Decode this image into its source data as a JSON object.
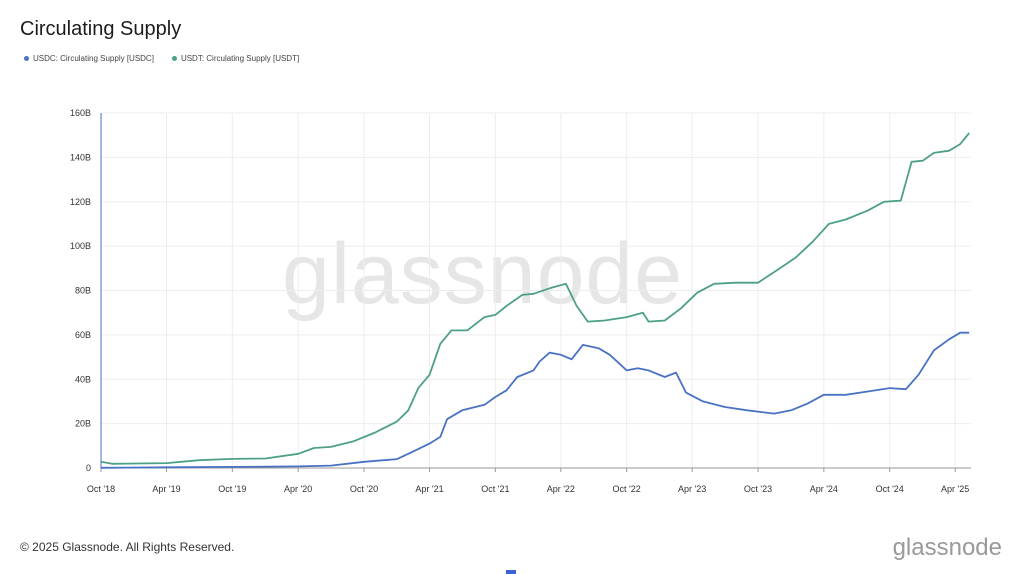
{
  "page": {
    "watermark": "glassnode",
    "copyright": "© 2025 Glassnode. All Rights Reserved.",
    "brand": "glassnode"
  },
  "colors": {
    "usdc": "#4a72c4",
    "usdt": "#4ea084",
    "grid": "#ededed",
    "axis": "#999999"
  },
  "chart_data": {
    "type": "line",
    "title": "Circulating Supply",
    "xlabel": "",
    "ylabel": "",
    "ylim": [
      0,
      160
    ],
    "y_ticks": [
      0,
      20,
      40,
      60,
      80,
      100,
      120,
      140,
      160
    ],
    "y_tick_labels": [
      "0",
      "20B",
      "40B",
      "60B",
      "80B",
      "100B",
      "120B",
      "140B",
      "160B"
    ],
    "xlim": [
      "2018-10-01",
      "2025-05-15"
    ],
    "x_ticks": [
      "2018-10-01",
      "2019-04-01",
      "2019-10-01",
      "2020-04-01",
      "2020-10-01",
      "2021-04-01",
      "2021-10-01",
      "2022-04-01",
      "2022-10-01",
      "2023-04-01",
      "2023-10-01",
      "2024-04-01",
      "2024-10-01",
      "2025-04-01"
    ],
    "x_tick_labels": [
      "Oct '18",
      "Apr '19",
      "Oct '19",
      "Apr '20",
      "Oct '20",
      "Apr '21",
      "Oct '21",
      "Apr '22",
      "Oct '22",
      "Apr '23",
      "Oct '23",
      "Apr '24",
      "Oct '24",
      "Apr '25"
    ],
    "grid": true,
    "legend_position": "top-left",
    "series": [
      {
        "name": "USDC: Circulating Supply [USDC]",
        "key": "usdc",
        "points": [
          [
            "2018-10-01",
            0.1
          ],
          [
            "2019-04-01",
            0.3
          ],
          [
            "2019-10-01",
            0.5
          ],
          [
            "2020-04-01",
            0.7
          ],
          [
            "2020-07-01",
            1.1
          ],
          [
            "2020-10-01",
            2.8
          ],
          [
            "2021-01-01",
            4.0
          ],
          [
            "2021-02-15",
            7.5
          ],
          [
            "2021-04-01",
            11.0
          ],
          [
            "2021-05-01",
            14.0
          ],
          [
            "2021-05-20",
            22.0
          ],
          [
            "2021-07-01",
            26.0
          ],
          [
            "2021-09-01",
            28.5
          ],
          [
            "2021-10-01",
            32.0
          ],
          [
            "2021-11-01",
            35.0
          ],
          [
            "2021-12-01",
            41.0
          ],
          [
            "2022-01-15",
            44.0
          ],
          [
            "2022-02-01",
            48.0
          ],
          [
            "2022-03-01",
            52.0
          ],
          [
            "2022-04-01",
            51.0
          ],
          [
            "2022-05-01",
            49.0
          ],
          [
            "2022-06-01",
            55.5
          ],
          [
            "2022-07-15",
            54.0
          ],
          [
            "2022-08-15",
            51.0
          ],
          [
            "2022-10-01",
            44.0
          ],
          [
            "2022-11-01",
            45.0
          ],
          [
            "2022-12-01",
            44.0
          ],
          [
            "2023-01-15",
            41.0
          ],
          [
            "2023-02-15",
            43.0
          ],
          [
            "2023-03-15",
            34.0
          ],
          [
            "2023-05-01",
            30.0
          ],
          [
            "2023-07-01",
            27.5
          ],
          [
            "2023-09-01",
            26.0
          ],
          [
            "2023-11-15",
            24.5
          ],
          [
            "2024-01-01",
            26.0
          ],
          [
            "2024-02-15",
            29.0
          ],
          [
            "2024-04-01",
            33.0
          ],
          [
            "2024-06-01",
            33.0
          ],
          [
            "2024-08-01",
            34.5
          ],
          [
            "2024-10-01",
            36.0
          ],
          [
            "2024-11-15",
            35.5
          ],
          [
            "2024-12-20",
            42.0
          ],
          [
            "2025-02-01",
            53.0
          ],
          [
            "2025-03-15",
            58.0
          ],
          [
            "2025-04-15",
            61.0
          ],
          [
            "2025-05-10",
            61.0
          ]
        ]
      },
      {
        "name": "USDT: Circulating Supply [USDT]",
        "key": "usdt",
        "points": [
          [
            "2018-10-01",
            2.8
          ],
          [
            "2018-11-01",
            1.9
          ],
          [
            "2019-04-01",
            2.2
          ],
          [
            "2019-07-01",
            3.5
          ],
          [
            "2019-10-01",
            4.1
          ],
          [
            "2020-01-01",
            4.3
          ],
          [
            "2020-04-01",
            6.4
          ],
          [
            "2020-05-15",
            9.0
          ],
          [
            "2020-07-01",
            9.5
          ],
          [
            "2020-09-01",
            12.0
          ],
          [
            "2020-11-01",
            16.0
          ],
          [
            "2021-01-01",
            21.0
          ],
          [
            "2021-02-01",
            26.0
          ],
          [
            "2021-03-01",
            36.0
          ],
          [
            "2021-04-01",
            42.0
          ],
          [
            "2021-05-01",
            56.0
          ],
          [
            "2021-06-01",
            62.0
          ],
          [
            "2021-07-15",
            62.0
          ],
          [
            "2021-09-01",
            68.0
          ],
          [
            "2021-10-01",
            69.0
          ],
          [
            "2021-11-01",
            73.0
          ],
          [
            "2021-12-15",
            78.0
          ],
          [
            "2022-01-15",
            78.5
          ],
          [
            "2022-03-01",
            81.0
          ],
          [
            "2022-04-15",
            83.0
          ],
          [
            "2022-05-15",
            73.0
          ],
          [
            "2022-06-15",
            66.0
          ],
          [
            "2022-08-01",
            66.5
          ],
          [
            "2022-10-01",
            68.0
          ],
          [
            "2022-11-15",
            70.0
          ],
          [
            "2022-12-01",
            66.0
          ],
          [
            "2023-01-15",
            66.5
          ],
          [
            "2023-03-01",
            72.0
          ],
          [
            "2023-04-15",
            79.0
          ],
          [
            "2023-06-01",
            83.0
          ],
          [
            "2023-08-01",
            83.5
          ],
          [
            "2023-10-01",
            83.5
          ],
          [
            "2023-12-01",
            90.0
          ],
          [
            "2024-01-15",
            95.0
          ],
          [
            "2024-03-01",
            102.0
          ],
          [
            "2024-04-15",
            110.0
          ],
          [
            "2024-06-01",
            112.0
          ],
          [
            "2024-08-01",
            116.0
          ],
          [
            "2024-09-15",
            120.0
          ],
          [
            "2024-11-01",
            120.5
          ],
          [
            "2024-12-01",
            138.0
          ],
          [
            "2025-01-01",
            138.5
          ],
          [
            "2025-02-01",
            142.0
          ],
          [
            "2025-03-15",
            143.0
          ],
          [
            "2025-04-15",
            146.0
          ],
          [
            "2025-05-10",
            151.0
          ]
        ]
      }
    ]
  }
}
